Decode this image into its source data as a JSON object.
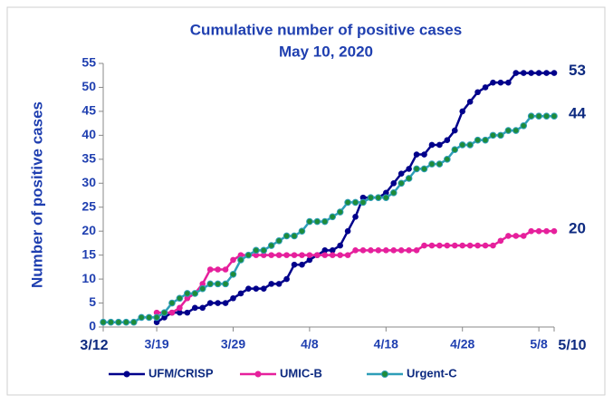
{
  "chart_data": {
    "type": "line",
    "title": "Cumulative number of positive cases",
    "subtitle": "May 10, 2020",
    "y_label": "Number of positive cases",
    "categories": [
      "3/12",
      "3/13",
      "3/14",
      "3/15",
      "3/16",
      "3/17",
      "3/18",
      "3/19",
      "3/20",
      "3/21",
      "3/22",
      "3/23",
      "3/24",
      "3/25",
      "3/26",
      "3/27",
      "3/28",
      "3/29",
      "3/30",
      "3/31",
      "4/1",
      "4/2",
      "4/3",
      "4/4",
      "4/5",
      "4/6",
      "4/7",
      "4/8",
      "4/9",
      "4/10",
      "4/11",
      "4/12",
      "4/13",
      "4/14",
      "4/15",
      "4/16",
      "4/17",
      "4/18",
      "4/19",
      "4/20",
      "4/21",
      "4/22",
      "4/23",
      "4/24",
      "4/25",
      "4/26",
      "4/27",
      "4/28",
      "4/29",
      "4/30",
      "5/1",
      "5/2",
      "5/3",
      "5/4",
      "5/5",
      "5/6",
      "5/7",
      "5/8",
      "5/9",
      "5/10"
    ],
    "xticks": [
      "3/12",
      "3/19",
      "3/29",
      "4/8",
      "4/18",
      "4/28",
      "5/8",
      "5/10"
    ],
    "series": [
      {
        "name": "UFM/CRISP",
        "color": "#00008b",
        "values": [
          null,
          null,
          null,
          null,
          null,
          null,
          null,
          1,
          2,
          3,
          3,
          3,
          4,
          4,
          5,
          5,
          5,
          6,
          7,
          8,
          8,
          8,
          9,
          9,
          10,
          13,
          13,
          14,
          15,
          16,
          16,
          17,
          20,
          23,
          27,
          27,
          27,
          28,
          30,
          32,
          33,
          36,
          36,
          38,
          38,
          39,
          41,
          45,
          47,
          49,
          50,
          51,
          51,
          51,
          53,
          53,
          53,
          53,
          53,
          53
        ]
      },
      {
        "name": "UMIC-B",
        "color": "#e6209c",
        "values": [
          null,
          null,
          null,
          null,
          null,
          null,
          null,
          3,
          3,
          3,
          4,
          6,
          7,
          9,
          12,
          12,
          12,
          14,
          15,
          15,
          15,
          15,
          15,
          15,
          15,
          15,
          15,
          15,
          15,
          15,
          15,
          15,
          15,
          16,
          16,
          16,
          16,
          16,
          16,
          16,
          16,
          16,
          17,
          17,
          17,
          17,
          17,
          17,
          17,
          17,
          17,
          17,
          18,
          19,
          19,
          19,
          20,
          20,
          20,
          20
        ]
      },
      {
        "name": "Urgent-C",
        "color": "#2e9eb8",
        "values": [
          1,
          1,
          1,
          1,
          1,
          2,
          2,
          2,
          3,
          5,
          6,
          7,
          7,
          8,
          9,
          9,
          9,
          11,
          14,
          15,
          16,
          16,
          17,
          18,
          19,
          19,
          20,
          22,
          22,
          22,
          23,
          24,
          26,
          26,
          26,
          27,
          27,
          27,
          28,
          30,
          31,
          33,
          33,
          34,
          34,
          35,
          37,
          38,
          38,
          39,
          39,
          40,
          40,
          41,
          41,
          42,
          44,
          44,
          44,
          44
        ]
      }
    ],
    "end_labels": [
      53,
      44,
      20
    ],
    "ylim": [
      0,
      55
    ],
    "yticks": [
      0,
      5,
      10,
      15,
      20,
      25,
      30,
      35,
      40,
      45,
      50,
      55
    ],
    "marker_fill": "#1e8c3a",
    "legend": "bottom"
  }
}
